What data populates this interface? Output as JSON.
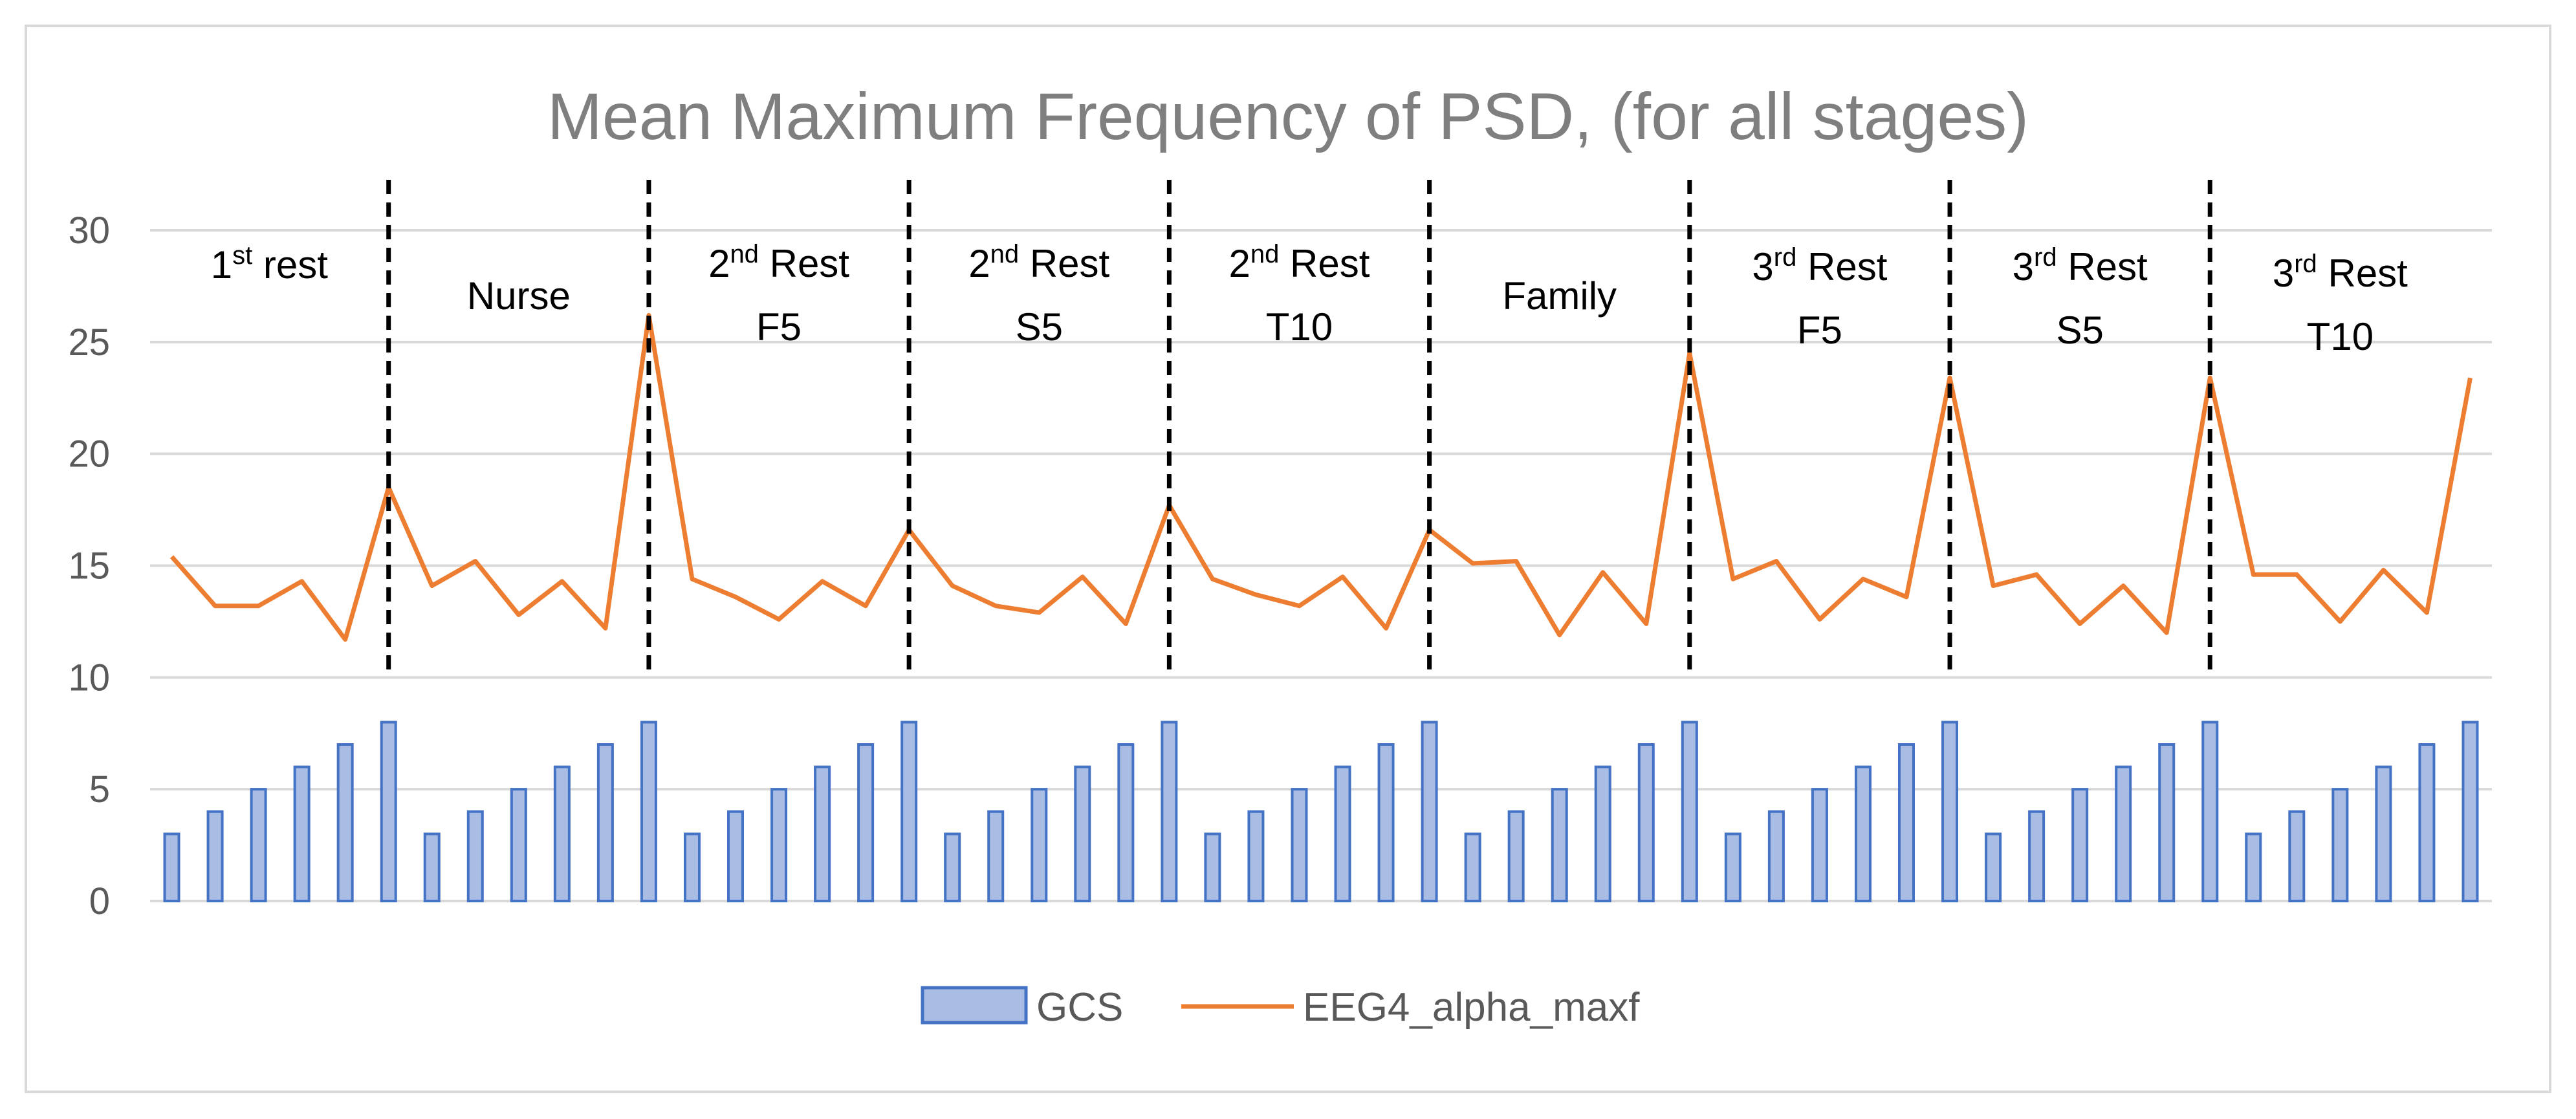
{
  "chart_data": {
    "type": "bar+line",
    "title": "Mean Maximum Frequency of PSD, (for all stages)",
    "ylim": [
      0,
      30
    ],
    "yticks": [
      0,
      5,
      10,
      15,
      20,
      25,
      30
    ],
    "grid": true,
    "legend_position": "bottom",
    "series": [
      {
        "name": "GCS",
        "type": "bar",
        "color": "#4472c4",
        "fill": "#a9bde4",
        "values": [
          3,
          4,
          5,
          6,
          7,
          8,
          3,
          4,
          5,
          6,
          7,
          8,
          3,
          4,
          5,
          6,
          7,
          8,
          3,
          4,
          5,
          6,
          7,
          8,
          3,
          4,
          5,
          6,
          7,
          8,
          3,
          4,
          5,
          6,
          7,
          8,
          3,
          4,
          5,
          6,
          7,
          8,
          3,
          4,
          5,
          6,
          7,
          8,
          3,
          4,
          5,
          6,
          7,
          8
        ]
      },
      {
        "name": "EEG4_alpha_maxf",
        "type": "line",
        "color": "#ed7d31",
        "values": [
          15.4,
          13.2,
          13.2,
          14.3,
          11.7,
          18.5,
          14.1,
          15.2,
          12.8,
          14.3,
          12.2,
          26.2,
          14.4,
          13.6,
          12.6,
          14.3,
          13.2,
          16.6,
          14.1,
          13.2,
          12.9,
          14.5,
          12.4,
          17.7,
          14.4,
          13.7,
          13.2,
          14.5,
          12.2,
          16.6,
          15.1,
          15.2,
          11.9,
          14.7,
          12.4,
          24.5,
          14.4,
          15.2,
          12.6,
          14.4,
          13.6,
          23.4,
          14.1,
          14.6,
          12.4,
          14.1,
          12.0,
          23.4,
          14.6,
          14.6,
          12.5,
          14.8,
          12.9,
          23.4
        ]
      }
    ],
    "stages": [
      {
        "line1": "1",
        "sup": "st",
        "line1_rest": " rest",
        "line2": ""
      },
      {
        "line1": "Nurse",
        "sup": "",
        "line1_rest": "",
        "line2": ""
      },
      {
        "line1": "2",
        "sup": "nd",
        "line1_rest": " Rest",
        "line2": "F5"
      },
      {
        "line1": "2",
        "sup": "nd",
        "line1_rest": " Rest",
        "line2": "S5"
      },
      {
        "line1": "2",
        "sup": "nd",
        "line1_rest": " Rest",
        "line2": "T10"
      },
      {
        "line1": "Family",
        "sup": "",
        "line1_rest": "",
        "line2": ""
      },
      {
        "line1": "3",
        "sup": "rd",
        "line1_rest": " Rest",
        "line2": "F5"
      },
      {
        "line1": "3",
        "sup": "rd",
        "line1_rest": " Rest",
        "line2": "S5"
      },
      {
        "line1": "3",
        "sup": "rd",
        "line1_rest": " Rest",
        "line2": "T10"
      }
    ],
    "stage_dividers_after_points": [
      6,
      12,
      18,
      24,
      30,
      36,
      42,
      48
    ],
    "colors": {
      "gridline": "#d9d9d9",
      "divider": "#000000",
      "text": "#595959",
      "title": "#7f7f7f"
    }
  }
}
